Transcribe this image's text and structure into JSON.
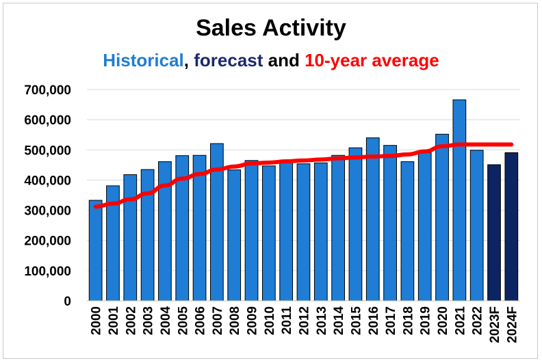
{
  "chart_data": {
    "type": "bar",
    "title": "Sales Activity",
    "subtitle": {
      "parts": [
        {
          "text": "Historical",
          "color": "#1f7dd6"
        },
        {
          "text": ", ",
          "color": "#000000"
        },
        {
          "text": "forecast",
          "color": "#1a2a6c"
        },
        {
          "text": " and ",
          "color": "#000000"
        },
        {
          "text": "10-year average",
          "color": "#ff0000"
        }
      ]
    },
    "categories": [
      "2000",
      "2001",
      "2002",
      "2003",
      "2004",
      "2005",
      "2006",
      "2007",
      "2008",
      "2009",
      "2010",
      "2011",
      "2012",
      "2013",
      "2014",
      "2015",
      "2016",
      "2017",
      "2018",
      "2019",
      "2020",
      "2021",
      "2022",
      "2023F",
      "2024F"
    ],
    "series": [
      {
        "type": "bar",
        "values": [
          333000,
          381000,
          418000,
          435000,
          461000,
          481000,
          482000,
          521000,
          434000,
          465000,
          447000,
          458000,
          454000,
          457000,
          482000,
          507000,
          540000,
          515000,
          461000,
          491000,
          552000,
          666000,
          499000,
          451000,
          491000
        ],
        "colors": [
          "#1f7dd6",
          "#1f7dd6",
          "#1f7dd6",
          "#1f7dd6",
          "#1f7dd6",
          "#1f7dd6",
          "#1f7dd6",
          "#1f7dd6",
          "#1f7dd6",
          "#1f7dd6",
          "#1f7dd6",
          "#1f7dd6",
          "#1f7dd6",
          "#1f7dd6",
          "#1f7dd6",
          "#1f7dd6",
          "#1f7dd6",
          "#1f7dd6",
          "#1f7dd6",
          "#1f7dd6",
          "#1f7dd6",
          "#1f7dd6",
          "#1f7dd6",
          "#0c2461",
          "#0c2461"
        ]
      },
      {
        "type": "line",
        "color": "#ff0000",
        "values": [
          312000,
          322000,
          336000,
          356000,
          382000,
          405000,
          420000,
          435000,
          445000,
          455000,
          458000,
          462000,
          465000,
          468000,
          472000,
          475000,
          478000,
          480000,
          485000,
          495000,
          512000,
          518000,
          518000,
          518000,
          518000
        ]
      }
    ],
    "y_ticks": [
      0,
      100000,
      200000,
      300000,
      400000,
      500000,
      600000,
      700000
    ],
    "y_tick_labels": [
      "0",
      "100,000",
      "200,000",
      "300,000",
      "400,000",
      "500,000",
      "600,000",
      "700,000"
    ],
    "ylim": [
      0,
      700000
    ],
    "grid": "horizontal",
    "legend": "none"
  }
}
